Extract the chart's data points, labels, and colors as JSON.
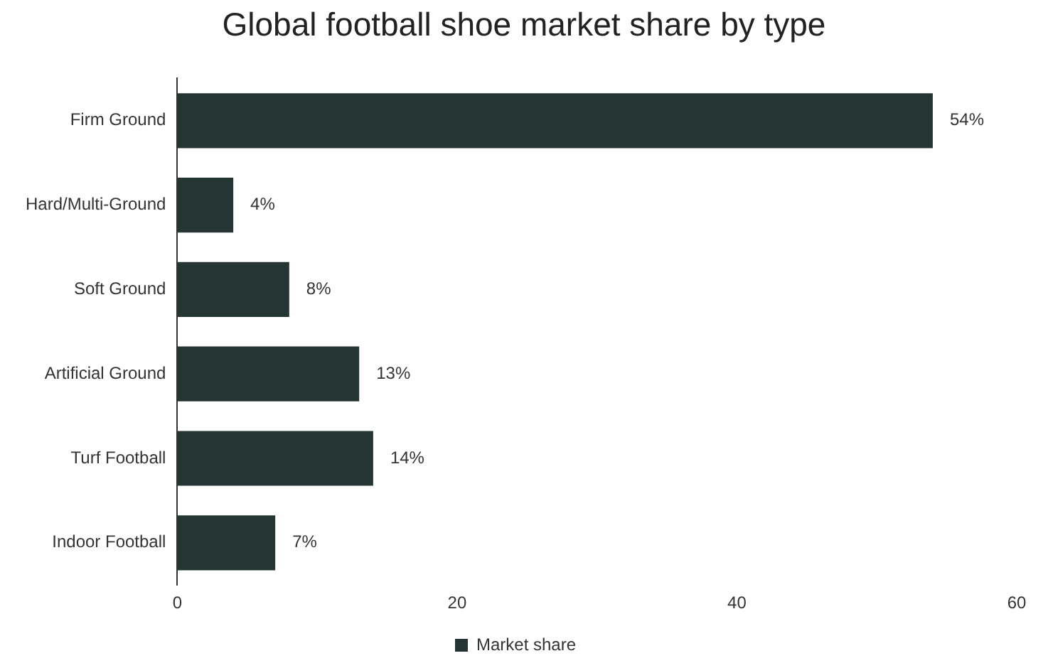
{
  "chart_data": {
    "type": "bar",
    "orientation": "horizontal",
    "title": "Global football shoe market share by type",
    "categories": [
      "Firm Ground",
      "Hard/Multi-Ground",
      "Soft Ground",
      "Artificial Ground",
      "Turf Football",
      "Indoor Football"
    ],
    "series": [
      {
        "name": "Market share",
        "color": "#243533",
        "values": [
          54,
          4,
          8,
          13,
          14,
          7
        ],
        "value_labels": [
          "54%",
          "4%",
          "8%",
          "13%",
          "14%",
          "7%"
        ]
      }
    ],
    "xlim": [
      0,
      60
    ],
    "xticks": [
      0,
      20,
      40,
      60
    ],
    "grid": false,
    "legend": "bottom"
  }
}
